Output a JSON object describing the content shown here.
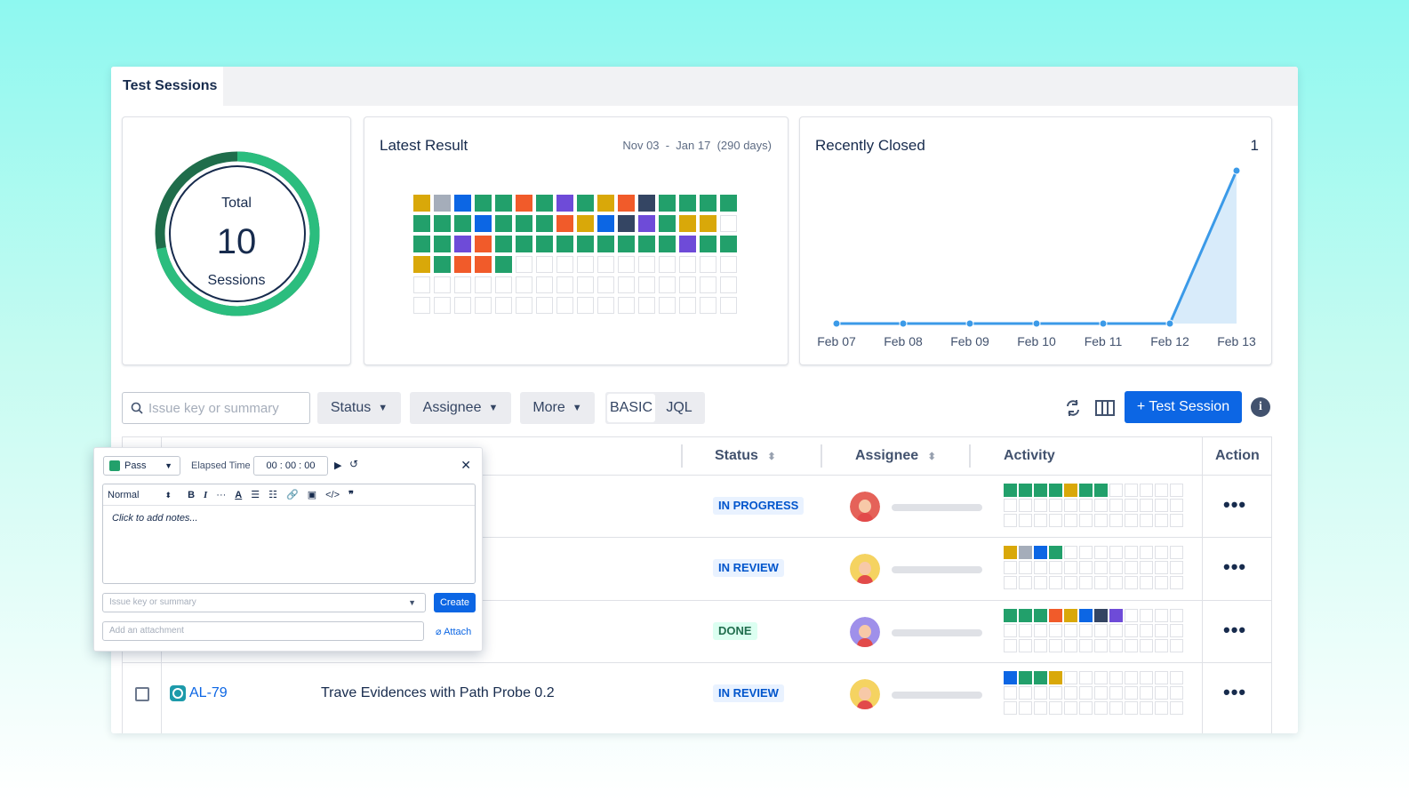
{
  "window": {
    "tab_label": "Test Sessions"
  },
  "summary": {
    "total_label": "Total",
    "total_value": "10",
    "sessions_label": "Sessions",
    "done_fraction": 0.72
  },
  "latest": {
    "title": "Latest Result",
    "range": "Nov 03  -  Jan 17  (290 days)",
    "grid": [
      [
        "#d9a809",
        "#a5adba",
        "#0c66e4",
        "#22a06b",
        "#22a06b",
        "#f15b2a",
        "#22a06b",
        "#6e4bd8",
        "#22a06b",
        "#d9a809",
        "#f15b2a",
        "#344563",
        "#22a06b",
        "#22a06b",
        "#22a06b",
        "#22a06b"
      ],
      [
        "#22a06b",
        "#22a06b",
        "#22a06b",
        "#0c66e4",
        "#22a06b",
        "#22a06b",
        "#22a06b",
        "#f15b2a",
        "#d9a809",
        "#0c66e4",
        "#344563",
        "#6e4bd8",
        "#22a06b",
        "#d9a809",
        "#d9a809"
      ],
      [
        "#22a06b",
        "#22a06b",
        "#6e4bd8",
        "#f15b2a",
        "#22a06b",
        "#22a06b",
        "#22a06b",
        "#22a06b",
        "#22a06b",
        "#22a06b",
        "#22a06b",
        "#22a06b",
        "#22a06b",
        "#6e4bd8",
        "#22a06b",
        "#22a06b"
      ],
      [
        "#d9a809",
        "#22a06b",
        "#f15b2a",
        "#f15b2a",
        "#22a06b"
      ],
      [],
      []
    ]
  },
  "closed": {
    "title": "Recently Closed",
    "count": "1"
  },
  "chart_data": {
    "type": "area",
    "title": "Recently Closed",
    "x": [
      "Feb 07",
      "Feb 08",
      "Feb 09",
      "Feb 10",
      "Feb 11",
      "Feb 12",
      "Feb 13"
    ],
    "values": [
      0,
      0,
      0,
      0,
      0,
      0,
      1
    ],
    "ylim": [
      0,
      1
    ],
    "color": "#3b9ae8"
  },
  "filters": {
    "search_placeholder": "Issue key or summary",
    "status": "Status",
    "assignee": "Assignee",
    "more": "More",
    "basic": "BASIC",
    "jql": "JQL",
    "create": "+ Test Session",
    "info": "i"
  },
  "table": {
    "headers": {
      "status": "Status",
      "assignee": "Assignee",
      "activity": "Activity",
      "action": "Action"
    },
    "rows": [
      {
        "status": "IN PROGRESS",
        "status_bg": "#e9f2ff",
        "status_fg": "#0055cc",
        "avatar": "#e2483d",
        "activity": [
          "#22a06b",
          "#22a06b",
          "#22a06b",
          "#22a06b",
          "#d9a809",
          "#22a06b",
          "#22a06b"
        ],
        "action": "•••"
      },
      {
        "status": "IN REVIEW",
        "status_bg": "#e9f2ff",
        "status_fg": "#0055cc",
        "avatar": "#f5cd47",
        "activity": [
          "#d9a809",
          "#a5adba",
          "#0c66e4",
          "#22a06b"
        ],
        "action": "•••"
      },
      {
        "status": "DONE",
        "status_bg": "#dcfff1",
        "status_fg": "#216e4e",
        "avatar": "#8f7ee7",
        "activity": [
          "#22a06b",
          "#22a06b",
          "#22a06b",
          "#f15b2a",
          "#d9a809",
          "#0c66e4",
          "#344563",
          "#6e4bd8"
        ],
        "action": "•••"
      },
      {
        "key": "AL-79",
        "summary": "Trave Evidences with Path Probe 0.2",
        "status": "IN REVIEW",
        "status_bg": "#e9f2ff",
        "status_fg": "#0055cc",
        "avatar": "#f5cd47",
        "activity": [
          "#0c66e4",
          "#22a06b",
          "#22a06b",
          "#d9a809"
        ],
        "action": "•••"
      }
    ]
  },
  "popup": {
    "result": "Pass",
    "elapsed_label": "Elapsed Time",
    "timer": "00 : 00 : 00",
    "format": "Normal",
    "notes_placeholder": "Click to add notes...",
    "issue_placeholder": "Issue key or summary",
    "create_label": "Create",
    "attach_placeholder": "Add an attachment",
    "attach_label": "Attach"
  }
}
